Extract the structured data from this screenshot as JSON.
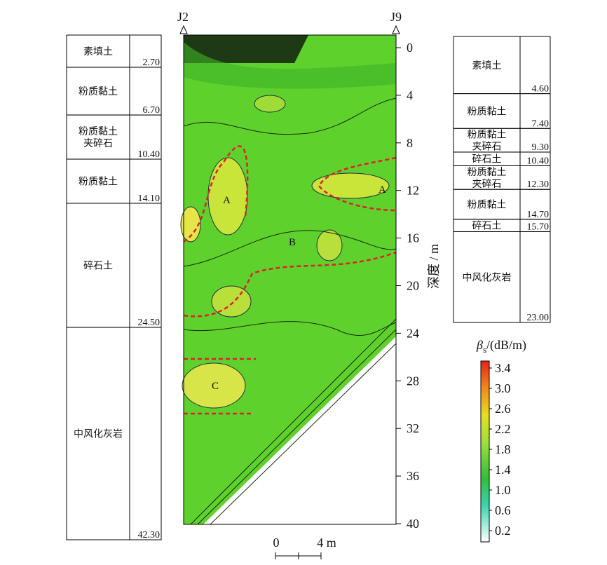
{
  "section_labels": {
    "left": "J2",
    "right": "J9"
  },
  "left_log": [
    {
      "name": [
        "素填土"
      ],
      "depth": "2.70"
    },
    {
      "name": [
        "粉质黏土"
      ],
      "depth": "6.70"
    },
    {
      "name": [
        "粉质黏土",
        "夹碎石"
      ],
      "depth": "10.40"
    },
    {
      "name": [
        "粉质黏土"
      ],
      "depth": "14.10"
    },
    {
      "name": [
        "碎石土"
      ],
      "depth": "24.50"
    },
    {
      "name": [
        "中风化灰岩"
      ],
      "depth": "42.30"
    }
  ],
  "right_log": [
    {
      "name": [
        "素填土"
      ],
      "depth": "4.60"
    },
    {
      "name": [
        "粉质黏土"
      ],
      "depth": "7.40"
    },
    {
      "name": [
        "粉质黏土",
        "夹碎石"
      ],
      "depth": "9.30"
    },
    {
      "name": [
        "碎石土"
      ],
      "depth": "10.40"
    },
    {
      "name": [
        "粉质黏土",
        "夹碎石"
      ],
      "depth": "12.30"
    },
    {
      "name": [
        "粉质黏土"
      ],
      "depth": "14.70"
    },
    {
      "name": [
        "碎石土"
      ],
      "depth": "15.70"
    },
    {
      "name": [
        "中风化灰岩"
      ],
      "depth": "23.00"
    }
  ],
  "depth_axis": {
    "label": "深度 / m",
    "ticks": [
      0,
      4,
      8,
      12,
      16,
      20,
      24,
      28,
      32,
      36,
      40
    ]
  },
  "zone_labels": [
    "A",
    "A",
    "B",
    "C"
  ],
  "colorbar": {
    "symbol": "β",
    "subscript": "s",
    "unit": "/(dB/m)",
    "ticks": [
      3.4,
      {
        "value": 3,
        "label": "3.0"
      },
      2.6,
      2.2,
      1.8,
      1.4,
      {
        "value": 1,
        "label": "1.0"
      },
      0.6,
      0.2
    ]
  },
  "scale_bar": {
    "start": "0",
    "end": "4 m"
  }
}
